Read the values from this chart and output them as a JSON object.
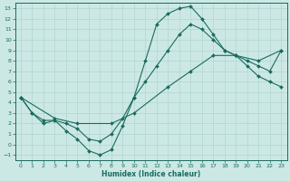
{
  "xlabel": "Humidex (Indice chaleur)",
  "bg_color": "#cce8e5",
  "grid_color": "#b0d5d0",
  "line_color": "#1a6b5e",
  "xlim": [
    -0.5,
    23.5
  ],
  "ylim": [
    -1.5,
    13.5
  ],
  "xticks": [
    0,
    1,
    2,
    3,
    4,
    5,
    6,
    7,
    8,
    9,
    10,
    11,
    12,
    13,
    14,
    15,
    16,
    17,
    18,
    19,
    20,
    21,
    22,
    23
  ],
  "yticks": [
    -1,
    0,
    1,
    2,
    3,
    4,
    5,
    6,
    7,
    8,
    9,
    10,
    11,
    12,
    13
  ],
  "curve_peak_x": [
    0,
    1,
    2,
    3,
    4,
    5,
    6,
    7,
    8,
    9,
    10,
    11,
    12,
    13,
    14,
    15,
    16,
    17,
    18,
    19,
    20,
    21,
    22,
    23
  ],
  "curve_peak_y": [
    4.5,
    3.0,
    2.0,
    2.3,
    1.3,
    0.5,
    -0.6,
    -1.0,
    -0.5,
    1.8,
    4.5,
    8.0,
    11.5,
    12.5,
    13.0,
    13.2,
    12.0,
    10.5,
    9.0,
    8.5,
    7.5,
    6.5,
    6.0,
    5.5
  ],
  "curve_mid_x": [
    0,
    1,
    2,
    3,
    4,
    5,
    6,
    7,
    8,
    9,
    10,
    11,
    12,
    13,
    14,
    15,
    16,
    17,
    18,
    19,
    20,
    21,
    22,
    23
  ],
  "curve_mid_y": [
    4.5,
    3.0,
    2.3,
    2.3,
    2.0,
    1.5,
    0.5,
    0.3,
    1.0,
    2.5,
    4.5,
    6.0,
    7.5,
    9.0,
    10.5,
    11.5,
    11.0,
    10.0,
    9.0,
    8.5,
    8.0,
    7.5,
    7.0,
    9.0
  ],
  "curve_diag_x": [
    0,
    3,
    5,
    8,
    10,
    13,
    15,
    17,
    19,
    21,
    23
  ],
  "curve_diag_y": [
    4.5,
    2.5,
    2.0,
    2.0,
    3.0,
    5.5,
    7.0,
    8.5,
    8.5,
    8.0,
    9.0
  ]
}
